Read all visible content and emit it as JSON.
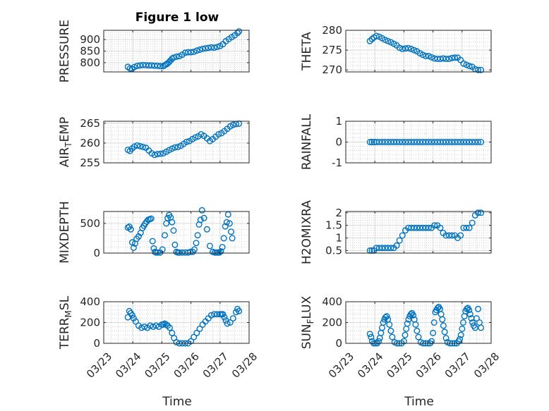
{
  "figure": {
    "title": "Figure 1 low",
    "xlabel": "Time"
  },
  "chart_data": [
    {
      "type": "scatter",
      "panel": "pressure",
      "title": "Figure 1 low",
      "xlabel": "",
      "ylabel": "PRESSURE",
      "xlim": [
        "03/23",
        "03/28"
      ],
      "ylim": [
        760,
        940
      ],
      "yticks": [
        800,
        850,
        900
      ],
      "xticks": [
        "03/23",
        "03/24",
        "03/25",
        "03/26",
        "03/27",
        "03/28"
      ],
      "show_xticklabels": false,
      "color": "#0072BD",
      "grid": true,
      "minor_grid": true,
      "x": [
        23.83,
        23.9,
        23.97,
        24.05,
        24.15,
        24.25,
        24.35,
        24.45,
        24.55,
        24.65,
        24.75,
        24.85,
        24.95,
        25.05,
        25.1,
        25.15,
        25.2,
        25.25,
        25.3,
        25.35,
        25.4,
        25.5,
        25.6,
        25.7,
        25.8,
        25.9,
        26.0,
        26.1,
        26.2,
        26.3,
        26.4,
        26.5,
        26.6,
        26.7,
        26.8,
        26.9,
        27.0,
        27.1,
        27.2,
        27.3,
        27.4,
        27.5,
        27.6,
        27.65
      ],
      "y": [
        782,
        775,
        773,
        781,
        786,
        788,
        790,
        789,
        788,
        788,
        787,
        787,
        785,
        785,
        789,
        793,
        797,
        803,
        810,
        817,
        822,
        826,
        828,
        834,
        843,
        845,
        845,
        847,
        852,
        856,
        860,
        862,
        864,
        866,
        865,
        868,
        872,
        880,
        893,
        902,
        910,
        918,
        928,
        935
      ]
    },
    {
      "type": "scatter",
      "panel": "theta",
      "xlabel": "",
      "ylabel": "THETA",
      "xlim": [
        "03/23",
        "03/28"
      ],
      "ylim": [
        269.5,
        280
      ],
      "yticks": [
        270,
        275,
        280
      ],
      "xticks": [
        "03/23",
        "03/24",
        "03/25",
        "03/26",
        "03/27",
        "03/28"
      ],
      "show_xticklabels": false,
      "color": "#0072BD",
      "grid": true,
      "minor_grid": true,
      "x": [
        23.83,
        23.9,
        23.97,
        24.05,
        24.15,
        24.25,
        24.35,
        24.45,
        24.55,
        24.65,
        24.75,
        24.85,
        24.95,
        25.05,
        25.15,
        25.25,
        25.35,
        25.45,
        25.55,
        25.65,
        25.75,
        25.85,
        25.95,
        26.05,
        26.15,
        26.25,
        26.35,
        26.45,
        26.55,
        26.65,
        26.75,
        26.85,
        26.95,
        27.05,
        27.15,
        27.25,
        27.35,
        27.45,
        27.55,
        27.65
      ],
      "y": [
        277.3,
        277.8,
        278.2,
        278.6,
        278.4,
        278.0,
        277.6,
        277.3,
        277.0,
        276.6,
        276.2,
        275.6,
        275.3,
        275.4,
        275.5,
        275.3,
        275.0,
        274.7,
        274.2,
        273.8,
        273.5,
        273.5,
        273.2,
        272.9,
        272.8,
        272.8,
        272.9,
        272.8,
        272.8,
        273.0,
        273.1,
        273.1,
        272.5,
        271.6,
        271.3,
        271.0,
        270.8,
        270.2,
        270.0,
        270.0
      ]
    },
    {
      "type": "scatter",
      "panel": "air_temp",
      "xlabel": "",
      "ylabel": "AIR",
      "ylabel_sub": "T",
      "ylabel_tail": "EMP",
      "xlim": [
        "03/23",
        "03/28"
      ],
      "ylim": [
        255,
        265.5
      ],
      "yticks": [
        255,
        260,
        265
      ],
      "xticks": [
        "03/23",
        "03/24",
        "03/25",
        "03/26",
        "03/27",
        "03/28"
      ],
      "show_xticklabels": false,
      "color": "#0072BD",
      "grid": true,
      "minor_grid": true,
      "x": [
        23.83,
        23.9,
        23.97,
        24.05,
        24.15,
        24.25,
        24.35,
        24.45,
        24.55,
        24.65,
        24.75,
        24.85,
        24.95,
        25.05,
        25.15,
        25.25,
        25.35,
        25.45,
        25.55,
        25.65,
        25.75,
        25.85,
        25.95,
        26.05,
        26.15,
        26.25,
        26.35,
        26.45,
        26.55,
        26.65,
        26.75,
        26.85,
        26.95,
        27.05,
        27.15,
        27.25,
        27.35,
        27.45,
        27.55,
        27.65
      ],
      "y": [
        258.3,
        258.0,
        258.6,
        259.1,
        259.4,
        259.2,
        259.0,
        258.8,
        258.1,
        257.4,
        257.0,
        257.2,
        257.3,
        257.4,
        257.8,
        258.2,
        258.6,
        258.9,
        259.0,
        259.3,
        259.8,
        260.3,
        260.5,
        261.0,
        261.4,
        261.7,
        262.2,
        261.8,
        261.2,
        260.5,
        261.0,
        261.6,
        262.2,
        262.5,
        263.0,
        263.6,
        264.2,
        264.6,
        264.8,
        264.9
      ]
    },
    {
      "type": "scatter",
      "panel": "rainfall",
      "xlabel": "",
      "ylabel": "RAINFALL",
      "xlim": [
        "03/23",
        "03/28"
      ],
      "ylim": [
        -1,
        1
      ],
      "yticks": [
        -1,
        0,
        1
      ],
      "xticks": [
        "03/23",
        "03/24",
        "03/25",
        "03/26",
        "03/27",
        "03/28"
      ],
      "show_xticklabels": false,
      "color": "#0072BD",
      "grid": true,
      "minor_grid": true,
      "x": [
        23.83,
        23.9,
        23.97,
        24.05,
        24.15,
        24.25,
        24.35,
        24.45,
        24.55,
        24.65,
        24.75,
        24.85,
        24.95,
        25.05,
        25.15,
        25.25,
        25.35,
        25.45,
        25.55,
        25.65,
        25.75,
        25.85,
        25.95,
        26.05,
        26.15,
        26.25,
        26.35,
        26.45,
        26.55,
        26.65,
        26.75,
        26.85,
        26.95,
        27.05,
        27.15,
        27.25,
        27.35,
        27.45,
        27.55,
        27.65
      ],
      "y": [
        0,
        0,
        0,
        0,
        0,
        0,
        0,
        0,
        0,
        0,
        0,
        0,
        0,
        0,
        0,
        0,
        0,
        0,
        0,
        0,
        0,
        0,
        0,
        0,
        0,
        0,
        0,
        0,
        0,
        0,
        0,
        0,
        0,
        0,
        0,
        0,
        0,
        0,
        0,
        0
      ]
    },
    {
      "type": "scatter",
      "panel": "mixdepth",
      "xlabel": "",
      "ylabel": "MIXDEPTH",
      "xlim": [
        "03/23",
        "03/28"
      ],
      "ylim": [
        0,
        700
      ],
      "yticks": [
        0,
        500
      ],
      "xticks": [
        "03/23",
        "03/24",
        "03/25",
        "03/26",
        "03/27",
        "03/28"
      ],
      "show_xticklabels": false,
      "color": "#0072BD",
      "grid": true,
      "minor_grid": true,
      "x": [
        23.83,
        23.88,
        23.93,
        23.98,
        24.03,
        24.08,
        24.13,
        24.2,
        24.27,
        24.33,
        24.38,
        24.43,
        24.48,
        24.53,
        24.58,
        24.63,
        24.68,
        24.72,
        24.76,
        24.8,
        24.86,
        24.94,
        25.02,
        25.1,
        25.15,
        25.2,
        25.25,
        25.3,
        25.35,
        25.4,
        25.45,
        25.5,
        25.55,
        25.6,
        25.7,
        25.8,
        25.9,
        25.98,
        26.06,
        26.12,
        26.18,
        26.23,
        26.28,
        26.33,
        26.38,
        26.45,
        26.55,
        26.65,
        26.75,
        26.82,
        26.88,
        26.93,
        26.98,
        27.03,
        27.08,
        27.13,
        27.18,
        27.23,
        27.28,
        27.33,
        27.38,
        27.42
      ],
      "y": [
        430,
        445,
        400,
        180,
        90,
        160,
        240,
        280,
        340,
        420,
        460,
        500,
        530,
        560,
        570,
        580,
        200,
        80,
        20,
        10,
        10,
        10,
        60,
        300,
        500,
        590,
        640,
        600,
        520,
        380,
        140,
        20,
        10,
        10,
        10,
        10,
        10,
        20,
        20,
        60,
        170,
        300,
        480,
        560,
        720,
        590,
        400,
        120,
        20,
        10,
        10,
        10,
        10,
        30,
        100,
        250,
        450,
        520,
        650,
        500,
        360,
        250
      ]
    },
    {
      "type": "scatter",
      "panel": "h2omixra",
      "xlabel": "",
      "ylabel": "H2OMIXRA",
      "xlim": [
        "03/23",
        "03/28"
      ],
      "ylim": [
        0.4,
        2.05
      ],
      "yticks": [
        0.5,
        1,
        1.5,
        2
      ],
      "xticks": [
        "03/23",
        "03/24",
        "03/25",
        "03/26",
        "03/27",
        "03/28"
      ],
      "show_xticklabels": false,
      "color": "#0072BD",
      "grid": true,
      "minor_grid": true,
      "x": [
        23.83,
        23.9,
        23.97,
        24.05,
        24.15,
        24.25,
        24.35,
        24.45,
        24.55,
        24.65,
        24.75,
        24.85,
        24.95,
        25.05,
        25.15,
        25.25,
        25.35,
        25.45,
        25.55,
        25.65,
        25.75,
        25.85,
        25.95,
        26.05,
        26.15,
        26.25,
        26.35,
        26.45,
        26.55,
        26.65,
        26.75,
        26.85,
        26.95,
        27.05,
        27.15,
        27.25,
        27.35,
        27.45,
        27.55,
        27.65
      ],
      "y": [
        0.5,
        0.5,
        0.5,
        0.6,
        0.6,
        0.6,
        0.6,
        0.6,
        0.6,
        0.6,
        0.7,
        0.9,
        1.1,
        1.3,
        1.4,
        1.4,
        1.4,
        1.4,
        1.4,
        1.4,
        1.4,
        1.4,
        1.4,
        1.5,
        1.5,
        1.4,
        1.2,
        1.1,
        1.1,
        1.1,
        1.1,
        1.0,
        1.1,
        1.4,
        1.4,
        1.4,
        1.6,
        1.9,
        2.0,
        2.0
      ]
    },
    {
      "type": "scatter",
      "panel": "terr_msl",
      "xlabel": "Time",
      "ylabel": "TERR",
      "ylabel_sub": "M",
      "ylabel_tail": "SL",
      "xlim": [
        "03/23",
        "03/28"
      ],
      "ylim": [
        0,
        400
      ],
      "yticks": [
        0,
        200,
        400
      ],
      "xticks": [
        "03/23",
        "03/24",
        "03/25",
        "03/26",
        "03/27",
        "03/28"
      ],
      "show_xticklabels": true,
      "color": "#0072BD",
      "grid": true,
      "minor_grid": true,
      "x": [
        23.83,
        23.88,
        23.93,
        23.98,
        24.03,
        24.1,
        24.2,
        24.3,
        24.4,
        24.5,
        24.6,
        24.7,
        24.8,
        24.9,
        25.0,
        25.05,
        25.1,
        25.15,
        25.2,
        25.27,
        25.35,
        25.42,
        25.5,
        25.6,
        25.7,
        25.8,
        25.9,
        26.0,
        26.1,
        26.2,
        26.3,
        26.4,
        26.5,
        26.6,
        26.7,
        26.8,
        26.9,
        27.0,
        27.05,
        27.1,
        27.15,
        27.2,
        27.25,
        27.35,
        27.45,
        27.55,
        27.6,
        27.65
      ],
      "y": [
        250,
        310,
        290,
        270,
        240,
        210,
        170,
        150,
        160,
        150,
        170,
        160,
        170,
        160,
        180,
        180,
        190,
        180,
        170,
        150,
        100,
        50,
        10,
        0,
        0,
        0,
        0,
        20,
        60,
        100,
        140,
        180,
        210,
        240,
        270,
        280,
        280,
        280,
        280,
        280,
        250,
        220,
        190,
        200,
        240,
        300,
        330,
        310
      ]
    },
    {
      "type": "scatter",
      "panel": "sun_flux",
      "xlabel": "Time",
      "ylabel": "SUN",
      "ylabel_sub": "F",
      "ylabel_tail": "LUX",
      "xlim": [
        "03/23",
        "03/28"
      ],
      "ylim": [
        0,
        400
      ],
      "yticks": [
        0,
        200,
        400
      ],
      "xticks": [
        "03/23",
        "03/24",
        "03/25",
        "03/26",
        "03/27",
        "03/28"
      ],
      "show_xticklabels": true,
      "color": "#0072BD",
      "grid": true,
      "minor_grid": true,
      "x": [
        23.83,
        23.87,
        23.91,
        23.96,
        24.02,
        24.08,
        24.13,
        24.17,
        24.21,
        24.25,
        24.29,
        24.33,
        24.37,
        24.41,
        24.45,
        24.5,
        24.55,
        24.6,
        24.68,
        24.76,
        24.84,
        24.92,
        25.0,
        25.04,
        25.08,
        25.12,
        25.16,
        25.2,
        25.24,
        25.28,
        25.32,
        25.36,
        25.4,
        25.45,
        25.5,
        25.58,
        25.66,
        25.74,
        25.82,
        25.9,
        25.95,
        26.0,
        26.04,
        26.08,
        26.12,
        26.16,
        26.2,
        26.24,
        26.28,
        26.32,
        26.36,
        26.4,
        26.45,
        26.5,
        26.58,
        26.66,
        26.74,
        26.82,
        26.88,
        26.92,
        26.96,
        27.0,
        27.04,
        27.08,
        27.12,
        27.16,
        27.2,
        27.24,
        27.28,
        27.32,
        27.36,
        27.4,
        27.45,
        27.5,
        27.55,
        27.6,
        27.65
      ],
      "y": [
        90,
        60,
        20,
        0,
        0,
        0,
        20,
        50,
        100,
        150,
        200,
        230,
        250,
        260,
        230,
        180,
        120,
        60,
        10,
        0,
        0,
        0,
        20,
        80,
        140,
        190,
        230,
        260,
        280,
        290,
        270,
        230,
        180,
        120,
        60,
        10,
        0,
        0,
        0,
        0,
        20,
        100,
        200,
        300,
        320,
        340,
        350,
        330,
        280,
        230,
        170,
        110,
        50,
        10,
        0,
        0,
        0,
        0,
        20,
        40,
        80,
        140,
        200,
        260,
        310,
        330,
        340,
        320,
        280,
        240,
        200,
        170,
        150,
        240,
        330,
        200,
        150
      ]
    }
  ]
}
